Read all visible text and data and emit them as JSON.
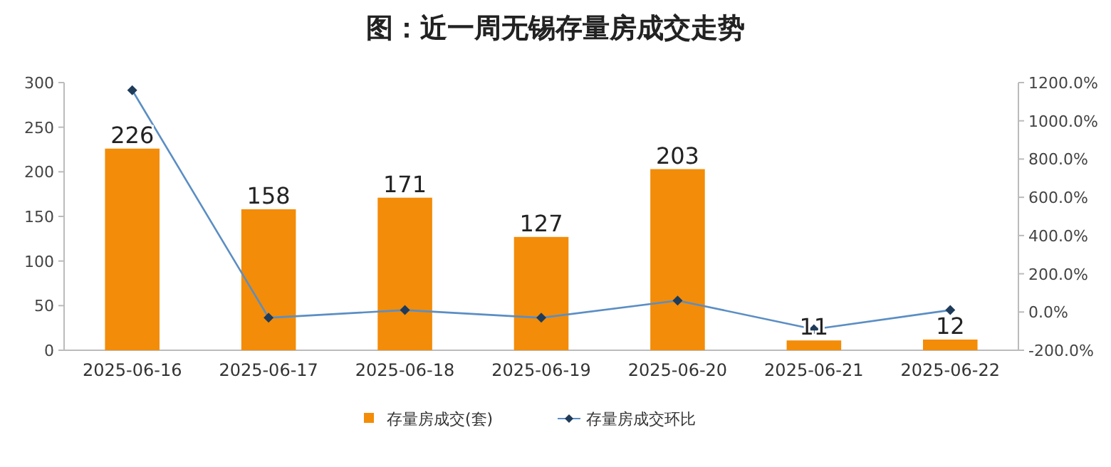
{
  "chart_data": {
    "type": "bar",
    "title": "图：近一周无锡存量房成交走势",
    "categories": [
      "2025-06-16",
      "2025-06-17",
      "2025-06-18",
      "2025-06-19",
      "2025-06-20",
      "2025-06-21",
      "2025-06-22"
    ],
    "series": [
      {
        "name": "存量房成交(套)",
        "color": "#f38c08",
        "values": [
          226,
          158,
          171,
          127,
          203,
          11,
          12
        ],
        "value_labels": [
          "226",
          "158",
          "171",
          "127",
          "203",
          "11",
          "12"
        ]
      },
      {
        "name": "存量房成交环比",
        "type": "line",
        "axis": "y2",
        "color": "#5b8ec4",
        "marker": "diamond",
        "values": [
          1160,
          -30,
          10,
          -30,
          60,
          -90,
          10
        ]
      }
    ],
    "ylim": [
      0,
      300
    ],
    "yticks": [
      0,
      50,
      100,
      150,
      200,
      250,
      300
    ],
    "y2lim": [
      -200,
      1200
    ],
    "y2ticks": [
      {
        "value": -200,
        "label": "-200.0%"
      },
      {
        "value": 0,
        "label": "0.0%"
      },
      {
        "value": 200,
        "label": "200.0%"
      },
      {
        "value": 400,
        "label": "400.0%"
      },
      {
        "value": 600,
        "label": "600.0%"
      },
      {
        "value": 800,
        "label": "800.0%"
      },
      {
        "value": 1000,
        "label": "1000.0%"
      },
      {
        "value": 1200,
        "label": "1200.0%"
      }
    ],
    "grid": false,
    "legend": "bottom"
  }
}
